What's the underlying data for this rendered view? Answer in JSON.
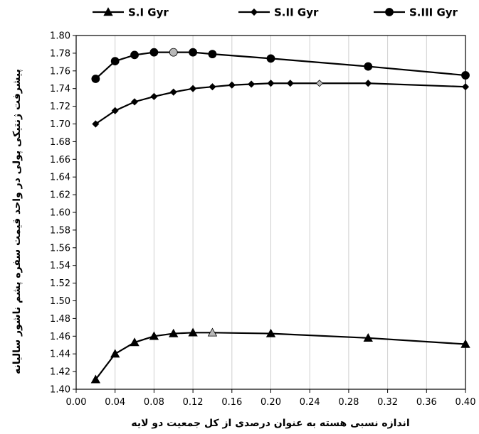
{
  "chart_data": {
    "type": "line",
    "xlabel": "اندازه نسبی هسته به عنوان درصدی از کل جمعیت دو لایه",
    "ylabel": "پیشرفت ژنتیکی پولی در واحد قیمت سفره پشم ناشور سالیانه",
    "xlim": [
      0.0,
      0.4
    ],
    "ylim": [
      1.4,
      1.8
    ],
    "x_ticks": [
      "0.00",
      "0.04",
      "0.08",
      "0.12",
      "0.16",
      "0.20",
      "0.24",
      "0.28",
      "0.32",
      "0.36",
      "0.40"
    ],
    "y_ticks": [
      "1.40",
      "1.42",
      "1.44",
      "1.46",
      "1.48",
      "1.50",
      "1.52",
      "1.54",
      "1.56",
      "1.58",
      "1.60",
      "1.62",
      "1.64",
      "1.66",
      "1.68",
      "1.70",
      "1.72",
      "1.74",
      "1.76",
      "1.78",
      "1.80"
    ],
    "grid": "vertical",
    "legend_position": "top",
    "series": [
      {
        "name": "S.I Gyr",
        "marker": "triangle",
        "x": [
          0.02,
          0.04,
          0.06,
          0.08,
          0.1,
          0.12,
          0.14,
          0.2,
          0.3,
          0.4
        ],
        "y": [
          1.411,
          1.44,
          1.453,
          1.46,
          1.463,
          1.464,
          1.464,
          1.463,
          1.458,
          1.451
        ],
        "highlight_index": 6
      },
      {
        "name": "S.II Gyr",
        "marker": "diamond",
        "x": [
          0.02,
          0.04,
          0.06,
          0.08,
          0.1,
          0.12,
          0.14,
          0.16,
          0.18,
          0.2,
          0.22,
          0.25,
          0.3,
          0.4
        ],
        "y": [
          1.7,
          1.715,
          1.725,
          1.731,
          1.736,
          1.74,
          1.742,
          1.744,
          1.745,
          1.746,
          1.746,
          1.746,
          1.746,
          1.742
        ],
        "highlight_index": 11
      },
      {
        "name": "S.III Gyr",
        "marker": "circle",
        "x": [
          0.02,
          0.04,
          0.06,
          0.08,
          0.1,
          0.12,
          0.14,
          0.2,
          0.3,
          0.4
        ],
        "y": [
          1.751,
          1.771,
          1.778,
          1.781,
          1.781,
          1.781,
          1.779,
          1.774,
          1.765,
          1.755
        ],
        "highlight_index": 4
      }
    ]
  },
  "colors": {
    "line": "#000000",
    "marker": "#000000",
    "highlight": "#b8b8b8",
    "grid": "#cfcfcf",
    "axis": "#000000"
  }
}
